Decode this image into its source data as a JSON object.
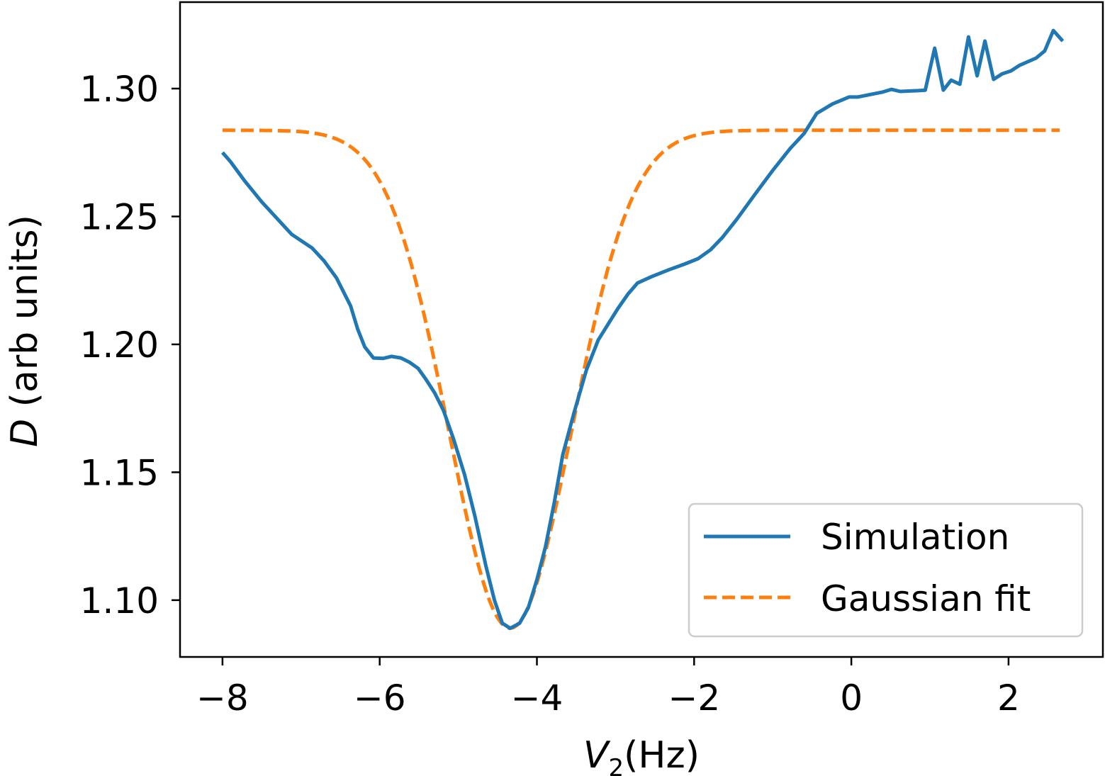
{
  "chart_data": {
    "type": "line",
    "title": "",
    "xlabel": "V",
    "xlabel_sub": "2",
    "xlabel_unit": "(Hz)",
    "ylabel": "D",
    "ylabel_rest": " (arb units)",
    "xlim": [
      -8.54,
      3.2
    ],
    "ylim": [
      1.0778,
      1.3338
    ],
    "xticks": [
      -8,
      -6,
      -4,
      -2,
      0,
      2
    ],
    "xtick_labels": [
      "−8",
      "−6",
      "−4",
      "−2",
      "0",
      "2"
    ],
    "yticks": [
      1.1,
      1.15,
      1.2,
      1.25,
      1.3
    ],
    "ytick_labels": [
      "1.10",
      "1.15",
      "1.20",
      "1.25",
      "1.30"
    ],
    "grid": false,
    "legend_position": "lower-right",
    "series": [
      {
        "name": "Simulation",
        "style": "solid",
        "color": "#1f77b4",
        "x": [
          -8.0,
          -7.9,
          -7.72,
          -7.5,
          -7.24,
          -7.12,
          -6.86,
          -6.71,
          -6.55,
          -6.37,
          -6.28,
          -6.19,
          -6.08,
          -5.96,
          -5.85,
          -5.73,
          -5.62,
          -5.51,
          -5.42,
          -5.3,
          -5.19,
          -5.06,
          -4.92,
          -4.79,
          -4.65,
          -4.54,
          -4.44,
          -4.34,
          -4.22,
          -4.11,
          -4.0,
          -3.89,
          -3.78,
          -3.67,
          -3.53,
          -3.37,
          -3.22,
          -3.08,
          -2.97,
          -2.84,
          -2.72,
          -2.54,
          -2.31,
          -2.13,
          -1.95,
          -1.79,
          -1.64,
          -1.46,
          -1.23,
          -1.0,
          -0.78,
          -0.6,
          -0.44,
          -0.24,
          -0.03,
          0.08,
          0.39,
          0.51,
          0.62,
          0.85,
          0.94,
          1.06,
          1.17,
          1.27,
          1.38,
          1.49,
          1.6,
          1.7,
          1.81,
          1.92,
          2.03,
          2.14,
          2.35,
          2.46,
          2.57,
          2.69
        ],
        "y": [
          1.275,
          1.2715,
          1.264,
          1.2557,
          1.247,
          1.243,
          1.2377,
          1.2327,
          1.226,
          1.215,
          1.206,
          1.199,
          1.1947,
          1.1945,
          1.1953,
          1.1947,
          1.193,
          1.1906,
          1.1867,
          1.181,
          1.1743,
          1.163,
          1.149,
          1.133,
          1.1135,
          1.1,
          1.091,
          1.089,
          1.091,
          1.097,
          1.108,
          1.121,
          1.138,
          1.157,
          1.173,
          1.19,
          1.2017,
          1.2086,
          1.214,
          1.2197,
          1.224,
          1.2265,
          1.2293,
          1.2313,
          1.2335,
          1.237,
          1.2418,
          1.2488,
          1.2585,
          1.268,
          1.2765,
          1.2825,
          1.2903,
          1.294,
          1.2967,
          1.2967,
          1.2986,
          1.2997,
          1.2989,
          1.2992,
          1.2994,
          1.3158,
          1.2994,
          1.3033,
          1.3017,
          1.3202,
          1.305,
          1.3186,
          1.3036,
          1.3058,
          1.3069,
          1.3091,
          1.3119,
          1.3147,
          1.3227,
          1.3186
        ]
      },
      {
        "name": "Gaussian fit",
        "style": "dashed",
        "color": "#ff7f0e",
        "model": "gaussian",
        "baseline": 1.2837,
        "amplitude": -0.1947,
        "center": -4.34,
        "sigma": 0.777,
        "x_range": [
          -8.0,
          2.69
        ]
      }
    ]
  }
}
